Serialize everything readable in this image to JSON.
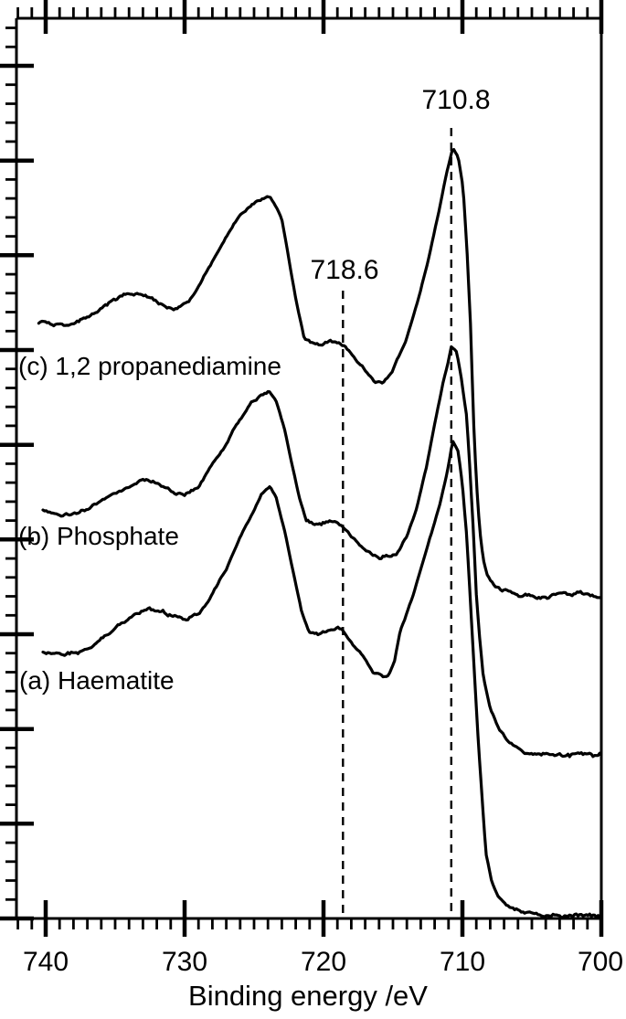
{
  "chart_data": {
    "type": "line",
    "title": "",
    "xlabel": "Binding energy /eV",
    "ylabel": "",
    "xlim": [
      740,
      700
    ],
    "x_axis_reversed": true,
    "ylim": [
      0,
      1000
    ],
    "y_units": "arbitrary intensity (axis unlabeled, ticks only)",
    "grid": false,
    "legend_position": "none (curves labeled inline)",
    "line_color": "#000000",
    "background_color": "#ffffff",
    "x_ticks": [
      740,
      730,
      720,
      710,
      700
    ],
    "x_tick_labels": [
      "740",
      "730",
      "720",
      "710",
      "700"
    ],
    "x_minor_tick_step": 1,
    "y_tick_labels": [],
    "annotations": [
      {
        "text": "710.8",
        "x": 710.8,
        "style": "dashed-vertical-line"
      },
      {
        "text": "718.6",
        "x": 718.6,
        "style": "dashed-vertical-line"
      }
    ],
    "series": [
      {
        "name": "(a) Haematite",
        "points": [
          [
            740.2,
            296
          ],
          [
            738.7,
            293
          ],
          [
            737.0,
            299
          ],
          [
            735.4,
            316
          ],
          [
            734.1,
            332
          ],
          [
            733.4,
            340
          ],
          [
            732.6,
            345
          ],
          [
            731.6,
            341
          ],
          [
            730.7,
            335
          ],
          [
            729.9,
            332
          ],
          [
            728.9,
            338
          ],
          [
            728.0,
            360
          ],
          [
            727.0,
            389
          ],
          [
            726.1,
            419
          ],
          [
            725.2,
            447
          ],
          [
            724.5,
            469
          ],
          [
            723.9,
            480
          ],
          [
            723.4,
            467
          ],
          [
            722.8,
            431
          ],
          [
            722.1,
            379
          ],
          [
            721.6,
            342
          ],
          [
            721.0,
            316
          ],
          [
            720.3,
            315
          ],
          [
            719.6,
            318
          ],
          [
            719.0,
            323
          ],
          [
            718.6,
            318
          ],
          [
            717.8,
            300
          ],
          [
            717.0,
            288
          ],
          [
            716.4,
            272
          ],
          [
            715.8,
            268
          ],
          [
            715.4,
            267
          ],
          [
            714.9,
            284
          ],
          [
            714.5,
            317
          ],
          [
            713.5,
            360
          ],
          [
            712.6,
            408
          ],
          [
            711.7,
            455
          ],
          [
            711.1,
            495
          ],
          [
            710.7,
            530
          ],
          [
            710.3,
            518
          ],
          [
            710.0,
            482
          ],
          [
            709.7,
            426
          ],
          [
            709.45,
            360
          ],
          [
            709.2,
            289
          ],
          [
            708.9,
            208
          ],
          [
            708.6,
            137
          ],
          [
            708.3,
            71
          ],
          [
            707.9,
            41
          ],
          [
            707.4,
            22
          ],
          [
            706.7,
            12
          ],
          [
            705.7,
            6
          ],
          [
            704.5,
            3
          ],
          [
            702.5,
            2
          ],
          [
            700.1,
            2
          ]
        ]
      },
      {
        "name": "(b) Phosphate",
        "points": [
          [
            740.2,
            452
          ],
          [
            738.7,
            449
          ],
          [
            737.0,
            456
          ],
          [
            735.4,
            469
          ],
          [
            734.1,
            480
          ],
          [
            732.9,
            485
          ],
          [
            731.8,
            481
          ],
          [
            730.8,
            474
          ],
          [
            730.0,
            471
          ],
          [
            729.1,
            477
          ],
          [
            728.2,
            500
          ],
          [
            727.2,
            523
          ],
          [
            726.2,
            551
          ],
          [
            725.2,
            573
          ],
          [
            724.3,
            582
          ],
          [
            723.9,
            584
          ],
          [
            723.4,
            574
          ],
          [
            722.8,
            543
          ],
          [
            722.2,
            499
          ],
          [
            721.7,
            464
          ],
          [
            721.2,
            439
          ],
          [
            720.6,
            437
          ],
          [
            719.9,
            440
          ],
          [
            719.3,
            442
          ],
          [
            718.75,
            437
          ],
          [
            718.2,
            428
          ],
          [
            717.3,
            412
          ],
          [
            716.4,
            405
          ],
          [
            715.9,
            404
          ],
          [
            715.2,
            404
          ],
          [
            714.7,
            408
          ],
          [
            714.0,
            425
          ],
          [
            713.3,
            455
          ],
          [
            712.6,
            500
          ],
          [
            712.0,
            550
          ],
          [
            711.4,
            595
          ],
          [
            711.0,
            620
          ],
          [
            710.8,
            636
          ],
          [
            710.4,
            629
          ],
          [
            710.1,
            602
          ],
          [
            709.7,
            558
          ],
          [
            709.45,
            497
          ],
          [
            709.2,
            426
          ],
          [
            709.0,
            360
          ],
          [
            708.75,
            310
          ],
          [
            708.5,
            269
          ],
          [
            708.0,
            233
          ],
          [
            707.4,
            211
          ],
          [
            706.7,
            196
          ],
          [
            705.8,
            186
          ],
          [
            704.8,
            182
          ],
          [
            702.8,
            181
          ],
          [
            701.2,
            181
          ],
          [
            700.1,
            181
          ]
        ]
      },
      {
        "name": "(c) 1,2 propanediamine",
        "points": [
          [
            740.5,
            662
          ],
          [
            738.4,
            658
          ],
          [
            736.7,
            670
          ],
          [
            735.4,
            683
          ],
          [
            734.1,
            693
          ],
          [
            732.8,
            688
          ],
          [
            731.6,
            681
          ],
          [
            730.7,
            676
          ],
          [
            729.5,
            690
          ],
          [
            728.5,
            716
          ],
          [
            727.2,
            754
          ],
          [
            725.9,
            782
          ],
          [
            724.9,
            795
          ],
          [
            724.0,
            802
          ],
          [
            723.6,
            795
          ],
          [
            723.0,
            777
          ],
          [
            722.5,
            733
          ],
          [
            722.0,
            688
          ],
          [
            721.4,
            645
          ],
          [
            720.8,
            638
          ],
          [
            720.1,
            640
          ],
          [
            719.5,
            645
          ],
          [
            718.9,
            643
          ],
          [
            718.4,
            636
          ],
          [
            717.6,
            620
          ],
          [
            716.8,
            607
          ],
          [
            716.3,
            598
          ],
          [
            715.7,
            596
          ],
          [
            715.0,
            610
          ],
          [
            714.1,
            641
          ],
          [
            713.2,
            687
          ],
          [
            712.4,
            736
          ],
          [
            711.7,
            785
          ],
          [
            711.2,
            824
          ],
          [
            710.7,
            856
          ],
          [
            710.3,
            846
          ],
          [
            709.95,
            812
          ],
          [
            709.7,
            751
          ],
          [
            709.4,
            655
          ],
          [
            709.2,
            553
          ],
          [
            709.0,
            487
          ],
          [
            708.75,
            431
          ],
          [
            708.5,
            399
          ],
          [
            708.2,
            381
          ],
          [
            707.7,
            370
          ],
          [
            707.1,
            363
          ],
          [
            706.1,
            360
          ],
          [
            704.5,
            358
          ],
          [
            702.5,
            359
          ],
          [
            700.1,
            358
          ]
        ]
      }
    ]
  }
}
